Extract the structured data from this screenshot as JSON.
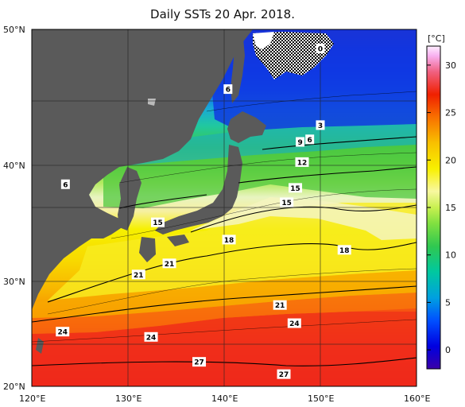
{
  "title": "Daily SSTs 20 Apr. 2018.",
  "colorbar": {
    "unit": "[°C]",
    "ticks": [
      "30",
      "25",
      "20",
      "15",
      "10",
      "5",
      "0"
    ],
    "range_c": [
      -2,
      32
    ],
    "colors": [
      "#3a00a8",
      "#0000e0",
      "#0050ff",
      "#00a0e0",
      "#00c8a0",
      "#30c850",
      "#80e040",
      "#c8f050",
      "#f8f8a0",
      "#f8f000",
      "#f8c000",
      "#f87000",
      "#f02000",
      "#f06080",
      "#f8b0f0",
      "#fff0ff"
    ]
  },
  "axes": {
    "lat_labels": [
      "50°N",
      "40°N",
      "30°N",
      "20°N"
    ],
    "lon_labels": [
      "120°E",
      "130°E",
      "140°E",
      "150°E",
      "160°E"
    ]
  },
  "contour_labels": [
    {
      "text": "0",
      "lon": 150,
      "lat": 48.7
    },
    {
      "text": "6",
      "lon": 140.4,
      "lat": 45.8
    },
    {
      "text": "3",
      "lon": 150,
      "lat": 43.1
    },
    {
      "text": "6",
      "lon": 148.9,
      "lat": 42.0
    },
    {
      "text": "9",
      "lon": 147.9,
      "lat": 41.8
    },
    {
      "text": "12",
      "lon": 148.1,
      "lat": 40.2
    },
    {
      "text": "6",
      "lon": 123.5,
      "lat": 38.4
    },
    {
      "text": "15",
      "lon": 147.4,
      "lat": 38.1
    },
    {
      "text": "15",
      "lon": 146.5,
      "lat": 36.9
    },
    {
      "text": "15",
      "lon": 133.1,
      "lat": 35.2
    },
    {
      "text": "18",
      "lon": 140.5,
      "lat": 33.7
    },
    {
      "text": "18",
      "lon": 152.5,
      "lat": 32.8
    },
    {
      "text": "21",
      "lon": 134.3,
      "lat": 31.6
    },
    {
      "text": "21",
      "lon": 131.1,
      "lat": 30.6
    },
    {
      "text": "21",
      "lon": 145.8,
      "lat": 27.8
    },
    {
      "text": "24",
      "lon": 123.2,
      "lat": 25.3
    },
    {
      "text": "24",
      "lon": 132.4,
      "lat": 24.8
    },
    {
      "text": "24",
      "lon": 147.3,
      "lat": 26.1
    },
    {
      "text": "27",
      "lon": 137.4,
      "lat": 22.4
    },
    {
      "text": "27",
      "lon": 146.2,
      "lat": 21.2
    }
  ]
}
